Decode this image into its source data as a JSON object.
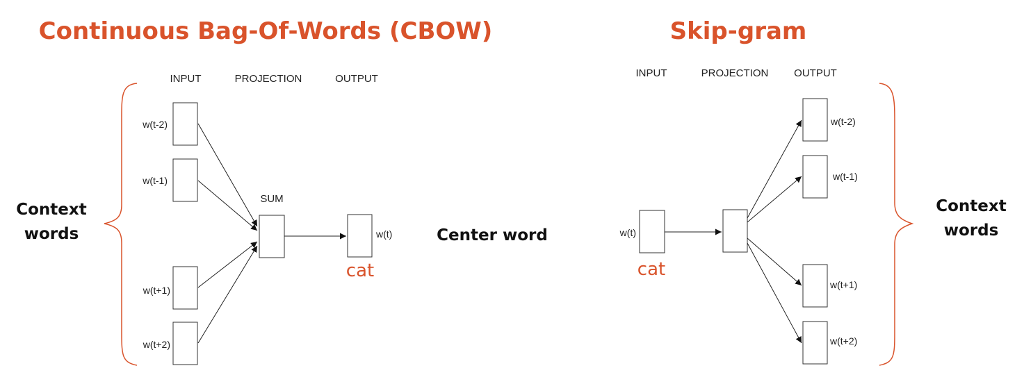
{
  "colors": {
    "accent": "#d9532b",
    "ink": "#111111"
  },
  "cbow": {
    "title": "Continuous Bag-Of-Words (CBOW)",
    "headers": {
      "input": "INPUT",
      "projection": "PROJECTION",
      "output": "OUTPUT"
    },
    "sum_label": "SUM",
    "inputs": [
      "w(t-2)",
      "w(t-1)",
      "w(t+1)",
      "w(t+2)"
    ],
    "output": "w(t)",
    "example": "cat",
    "side_label_line1": "Context",
    "side_label_line2": "words"
  },
  "center_label": "Center word",
  "skipgram": {
    "title": "Skip-gram",
    "headers": {
      "input": "INPUT",
      "projection": "PROJECTION",
      "output": "OUTPUT"
    },
    "input": "w(t)",
    "example": "cat",
    "outputs": [
      "w(t-2)",
      "w(t-1)",
      "w(t+1)",
      "w(t+2)"
    ],
    "side_label_line1": "Context",
    "side_label_line2": "words"
  }
}
